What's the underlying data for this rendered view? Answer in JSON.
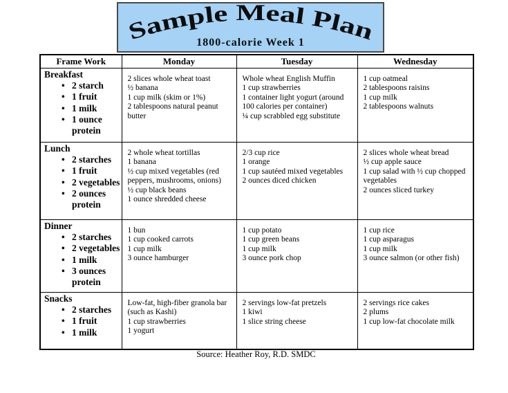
{
  "title": {
    "main": "Sample Meal Plan",
    "subtitle": "1800-calorie Week 1"
  },
  "colors": {
    "title_background": "#a5d2f5",
    "title_border": "#4a4a4a",
    "table_border": "#000000",
    "text": "#000000"
  },
  "table": {
    "headers": [
      "Frame Work",
      "Monday",
      "Tuesday",
      "Wednesday"
    ],
    "rows": [
      {
        "meal": "Breakfast",
        "framework": [
          "2 starch",
          "1 fruit",
          "1 milk",
          "1 ounce protein"
        ],
        "monday": [
          "2 slices whole wheat toast",
          "½ banana",
          "1 cup milk (skim or 1%)",
          "2 tablespoons natural peanut butter"
        ],
        "tuesday": [
          "Whole wheat English Muffin",
          "1 cup strawberries",
          "1 container light yogurt (around 100 calories per container)",
          "¼ cup scrabbled egg substitute"
        ],
        "wednesday": [
          "1 cup oatmeal",
          "2 tablespoons raisins",
          "1 cup milk",
          "2 tablespoons walnuts"
        ]
      },
      {
        "meal": "Lunch",
        "framework": [
          "2 starches",
          "1 fruit",
          "2 vegetables",
          "2 ounces protein"
        ],
        "monday": [
          "2 whole wheat tortillas",
          "1 banana",
          "½ cup mixed vegetables (red peppers, mushrooms, onions)",
          "½ cup black beans",
          "1 ounce shredded cheese"
        ],
        "tuesday": [
          "2/3 cup rice",
          "1 orange",
          "1 cup sautéed mixed vegetables",
          "2 ounces diced chicken"
        ],
        "wednesday": [
          "2 slices whole wheat bread",
          "½ cup apple sauce",
          "1 cup salad with ½ cup chopped vegetables",
          "2 ounces sliced turkey"
        ]
      },
      {
        "meal": "Dinner",
        "framework": [
          "2 starches",
          "2 vegetables",
          "1 milk",
          "3 ounces protein"
        ],
        "monday": [
          "1 bun",
          "1 cup cooked carrots",
          "1 cup milk",
          "3 ounce hamburger"
        ],
        "tuesday": [
          "1 cup potato",
          "1 cup green beans",
          "1 cup milk",
          "3 ounce pork chop"
        ],
        "wednesday": [
          "1 cup rice",
          "1 cup asparagus",
          "1 cup milk",
          "3 ounce salmon (or other fish)"
        ]
      },
      {
        "meal": "Snacks",
        "framework": [
          "2 starches",
          "1 fruit",
          "1 milk"
        ],
        "monday": [
          "Low-fat, high-fiber granola bar (such as Kashi)",
          "1 cup strawberries",
          "1 yogurt"
        ],
        "tuesday": [
          "2 servings low-fat pretzels",
          "1 kiwi",
          "1 slice string cheese"
        ],
        "wednesday": [
          "2 servings rice cakes",
          "2 plums",
          "1 cup low-fat chocolate milk"
        ]
      }
    ]
  },
  "source": "Source: Heather Roy, R.D. SMDC"
}
